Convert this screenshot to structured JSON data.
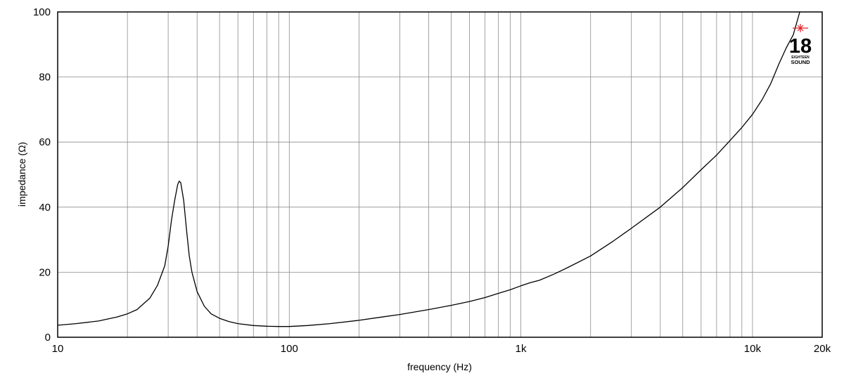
{
  "chart_data": {
    "type": "line",
    "title": "",
    "xlabel": "frequency (Hz)",
    "ylabel": "impedance (Ω)",
    "x_scale": "log",
    "xlim": [
      10,
      20000
    ],
    "ylim": [
      0,
      100
    ],
    "grid": true,
    "x_tick_labels": [
      {
        "value": 10,
        "label": "10"
      },
      {
        "value": 100,
        "label": "100"
      },
      {
        "value": 1000,
        "label": "1k"
      },
      {
        "value": 10000,
        "label": "10k"
      },
      {
        "value": 20000,
        "label": "20k"
      }
    ],
    "y_ticks": [
      0,
      20,
      40,
      60,
      80,
      100
    ],
    "series": [
      {
        "x": [
          10,
          12,
          15,
          18,
          20,
          22,
          25,
          27,
          29,
          30,
          31,
          32,
          33,
          33.5,
          34,
          35,
          36,
          37,
          38,
          40,
          43,
          46,
          50,
          55,
          60,
          70,
          80,
          90,
          100,
          120,
          150,
          200,
          250,
          300,
          400,
          500,
          600,
          700,
          800,
          900,
          1000,
          1100,
          1200,
          1400,
          1600,
          2000,
          2500,
          3000,
          4000,
          5000,
          6000,
          7000,
          8000,
          9000,
          10000,
          11000,
          12000,
          13000,
          14000,
          15000,
          16000
        ],
        "y": [
          3.7,
          4.2,
          5.0,
          6.2,
          7.2,
          8.5,
          12.0,
          16.0,
          22.0,
          28.0,
          36.0,
          42.0,
          47.0,
          48.0,
          47.5,
          42.0,
          33.0,
          25.0,
          20.0,
          14.0,
          9.5,
          7.2,
          5.8,
          4.8,
          4.2,
          3.6,
          3.4,
          3.3,
          3.3,
          3.6,
          4.2,
          5.2,
          6.2,
          7.0,
          8.5,
          9.8,
          11.0,
          12.2,
          13.5,
          14.6,
          15.8,
          16.8,
          17.5,
          19.5,
          21.5,
          25.0,
          29.5,
          33.5,
          40.0,
          46.0,
          51.5,
          56.0,
          60.5,
          64.5,
          68.5,
          73.0,
          78.0,
          84.0,
          89.0,
          93.0,
          100.0
        ]
      }
    ]
  },
  "logo": {
    "number": "18",
    "line1": "EIGHTEEN",
    "line2": "SOUND",
    "star_color": "#e31e24"
  },
  "colors": {
    "line": "#000000",
    "grid": "#8c8c8c",
    "frame": "#000000"
  }
}
